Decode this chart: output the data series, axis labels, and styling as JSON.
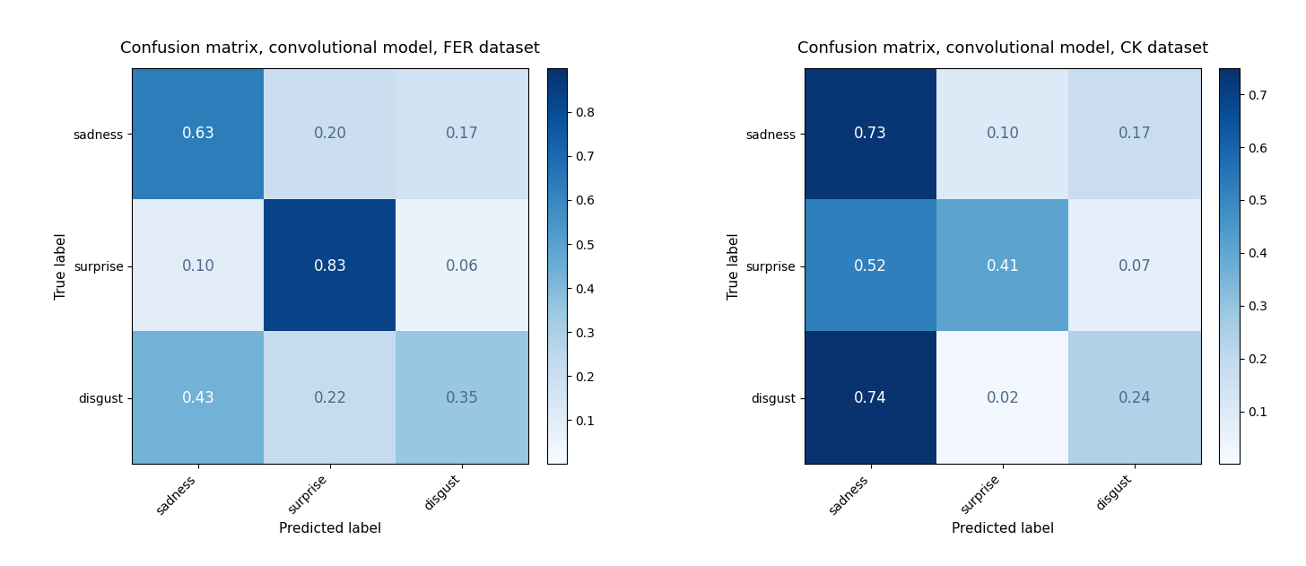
{
  "matrix1": [
    [
      0.63,
      0.2,
      0.17
    ],
    [
      0.1,
      0.83,
      0.06
    ],
    [
      0.43,
      0.22,
      0.35
    ]
  ],
  "matrix2": [
    [
      0.73,
      0.1,
      0.17
    ],
    [
      0.52,
      0.41,
      0.07
    ],
    [
      0.74,
      0.02,
      0.24
    ]
  ],
  "labels": [
    "sadness",
    "surprise",
    "disgust"
  ],
  "title1": "Confusion matrix, convolutional model, FER dataset",
  "title2": "Confusion matrix, convolutional model, CK dataset",
  "xlabel": "Predicted label",
  "ylabel": "True label",
  "cmap": "Blues",
  "vmin1": 0.0,
  "vmax1": 0.9,
  "vmin2": 0.0,
  "vmax2": 0.75,
  "colorbar_ticks1": [
    0.1,
    0.2,
    0.3,
    0.4,
    0.5,
    0.6,
    0.7,
    0.8
  ],
  "colorbar_ticks2": [
    0.1,
    0.2,
    0.3,
    0.4,
    0.5,
    0.6,
    0.7
  ],
  "white_text_thresh1": 0.45,
  "white_text_thresh2": 0.45,
  "fontsize_title": 13,
  "fontsize_axis_label": 11,
  "fontsize_ticks": 10,
  "fontsize_values": 12,
  "fig_width": 14.56,
  "fig_height": 6.31,
  "dark_text_color": "#4c6a8a",
  "light_text_color": "white"
}
